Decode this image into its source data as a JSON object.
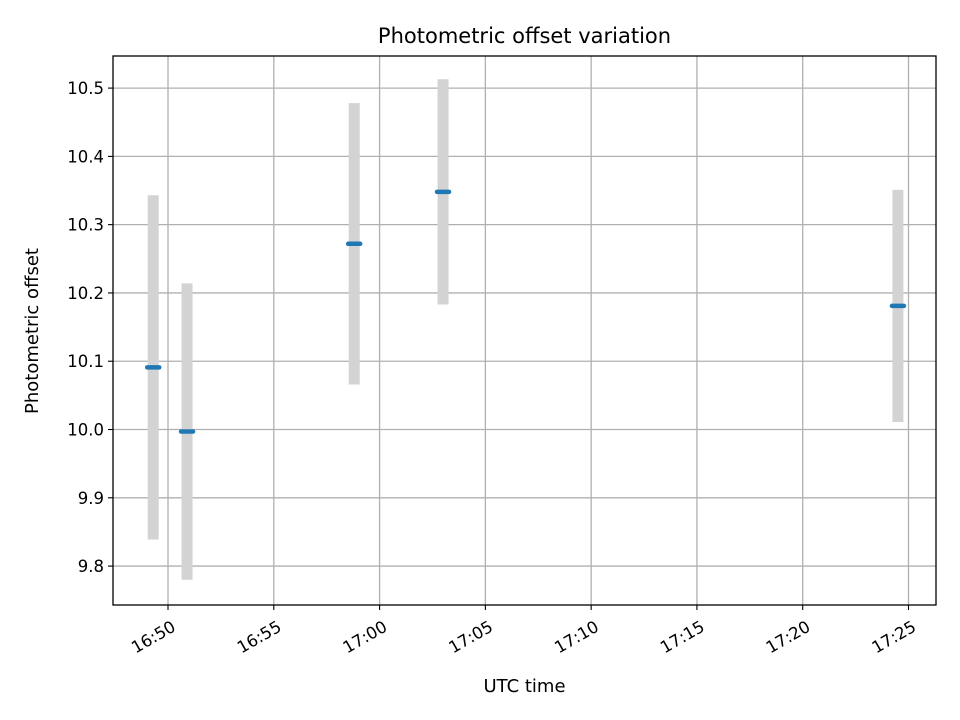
{
  "chart_data": {
    "type": "scatter",
    "title": "Photometric offset variation",
    "xlabel": "UTC time",
    "ylabel": "Photometric offset",
    "x_unit": "UTC time (HH:MM)",
    "xlim": [
      "16:47.4",
      "17:26.3"
    ],
    "ylim": [
      9.743,
      10.547
    ],
    "xticks": [
      "16:50",
      "16:55",
      "17:00",
      "17:05",
      "17:10",
      "17:15",
      "17:20",
      "17:25"
    ],
    "yticks": [
      9.8,
      9.9,
      10.0,
      10.1,
      10.2,
      10.3,
      10.4,
      10.5
    ],
    "ytick_labels": [
      "9.8",
      "9.9",
      "10.0",
      "10.1",
      "10.2",
      "10.3",
      "10.4",
      "10.5"
    ],
    "grid": true,
    "marker_color": "#1f77b4",
    "error_color": "#d3d3d3",
    "series": [
      {
        "points": [
          {
            "x": "16:49.3",
            "y": 10.091,
            "err": 0.252
          },
          {
            "x": "16:50.9",
            "y": 9.997,
            "err": 0.217
          },
          {
            "x": "16:58.8",
            "y": 10.272,
            "err": 0.206
          },
          {
            "x": "17:03.0",
            "y": 10.348,
            "err": 0.165
          },
          {
            "x": "17:24.5",
            "y": 10.181,
            "err": 0.17
          }
        ]
      }
    ]
  }
}
